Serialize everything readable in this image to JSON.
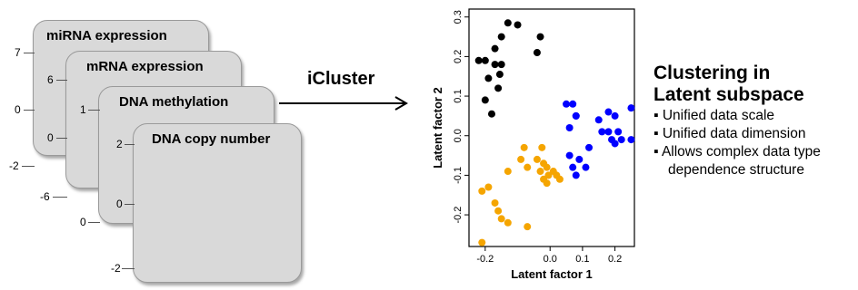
{
  "cards": [
    {
      "title": "miRNA expression",
      "ticks": [
        "7",
        "0",
        "-2"
      ]
    },
    {
      "title": "mRNA expression",
      "ticks": [
        "6",
        "0",
        "-6"
      ]
    },
    {
      "title": "DNA methylation",
      "ticks": [
        "1",
        "0"
      ]
    },
    {
      "title": "DNA copy number",
      "ticks": [
        "2",
        "0",
        "-2"
      ]
    }
  ],
  "arrow_label": "iCluster",
  "summary": {
    "heading_line1": "Clustering in",
    "heading_line2": "Latent subspace",
    "bullets": [
      "Unified data scale",
      "Unified data dimension",
      "Allows complex data type"
    ],
    "bullet_continuation": "dependence structure"
  },
  "chart_data": {
    "type": "scatter",
    "xlabel": "Latent factor 1",
    "ylabel": "Latent factor 2",
    "xticks": [
      -0.2,
      0.0,
      0.1,
      0.2
    ],
    "xtick_labels": [
      "-0.2",
      "0.0",
      "0.1",
      "0.2"
    ],
    "yticks": [
      -0.2,
      -0.1,
      0.0,
      0.1,
      0.2,
      0.3
    ],
    "ytick_labels": [
      "-0.2",
      "-0.1",
      "0.0",
      "0.1",
      "0.2",
      "0.3"
    ],
    "xlim": [
      -0.25,
      0.26
    ],
    "ylim": [
      -0.28,
      0.32
    ],
    "series": [
      {
        "color": "#000000",
        "points": [
          [
            -0.13,
            0.285
          ],
          [
            -0.1,
            0.28
          ],
          [
            -0.15,
            0.25
          ],
          [
            -0.17,
            0.22
          ],
          [
            -0.22,
            0.19
          ],
          [
            -0.17,
            0.18
          ],
          [
            -0.2,
            0.19
          ],
          [
            -0.15,
            0.18
          ],
          [
            -0.155,
            0.155
          ],
          [
            -0.19,
            0.145
          ],
          [
            -0.16,
            0.12
          ],
          [
            -0.03,
            0.25
          ],
          [
            -0.04,
            0.21
          ],
          [
            -0.2,
            0.09
          ],
          [
            -0.18,
            0.055
          ]
        ]
      },
      {
        "color": "#0000ff",
        "points": [
          [
            0.05,
            0.08
          ],
          [
            0.07,
            0.08
          ],
          [
            0.08,
            0.05
          ],
          [
            0.08,
            0.05
          ],
          [
            0.06,
            0.02
          ],
          [
            0.15,
            0.04
          ],
          [
            0.2,
            0.05
          ],
          [
            0.25,
            0.07
          ],
          [
            0.18,
            0.06
          ],
          [
            0.21,
            0.01
          ],
          [
            0.16,
            0.01
          ],
          [
            0.18,
            0.01
          ],
          [
            0.22,
            -0.01
          ],
          [
            0.19,
            -0.01
          ],
          [
            0.25,
            -0.01
          ],
          [
            0.2,
            -0.02
          ],
          [
            0.12,
            -0.03
          ],
          [
            0.06,
            -0.05
          ],
          [
            0.09,
            -0.06
          ],
          [
            0.07,
            -0.08
          ],
          [
            0.11,
            -0.08
          ],
          [
            0.08,
            -0.1
          ]
        ]
      },
      {
        "color": "#f5a500",
        "points": [
          [
            -0.08,
            -0.03
          ],
          [
            -0.09,
            -0.06
          ],
          [
            -0.07,
            -0.08
          ],
          [
            -0.04,
            -0.06
          ],
          [
            -0.025,
            -0.03
          ],
          [
            -0.02,
            -0.07
          ],
          [
            -0.01,
            -0.08
          ],
          [
            -0.03,
            -0.09
          ],
          [
            -0.005,
            -0.1
          ],
          [
            -0.02,
            -0.11
          ],
          [
            -0.01,
            -0.12
          ],
          [
            0.01,
            -0.09
          ],
          [
            0.02,
            -0.1
          ],
          [
            0.03,
            -0.11
          ],
          [
            -0.13,
            -0.09
          ],
          [
            -0.19,
            -0.13
          ],
          [
            -0.21,
            -0.14
          ],
          [
            -0.17,
            -0.17
          ],
          [
            -0.16,
            -0.19
          ],
          [
            -0.15,
            -0.21
          ],
          [
            -0.13,
            -0.22
          ],
          [
            -0.07,
            -0.23
          ],
          [
            -0.21,
            -0.27
          ]
        ]
      }
    ]
  }
}
